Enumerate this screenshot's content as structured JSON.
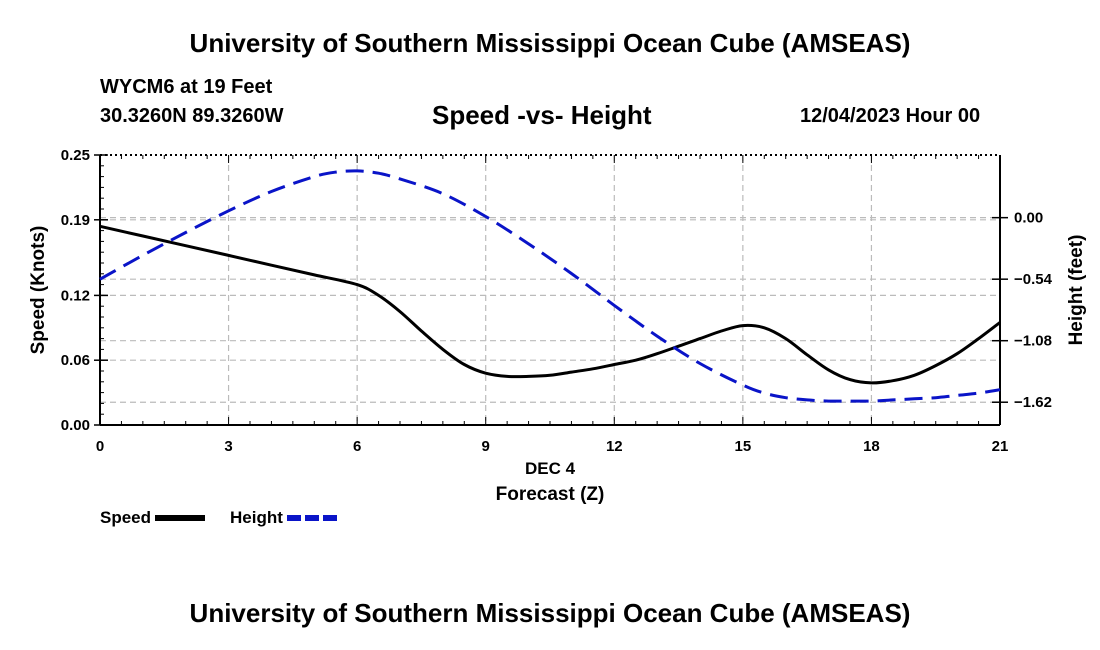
{
  "header": {
    "title_top": "University of Southern Mississippi Ocean Cube (AMSEAS)",
    "station": "WYCM6 at 19 Feet",
    "coords": "30.3260N  89.3260W",
    "subtitle": "Speed -vs- Height",
    "datetime": "12/04/2023 Hour 00",
    "title_bottom": "University of Southern Mississippi Ocean Cube (AMSEAS)"
  },
  "colors": {
    "speed": "#000000",
    "height": "#0a14c8",
    "grid": "#bbbbbb"
  },
  "chart_data": {
    "type": "line",
    "title": "Speed -vs- Height",
    "xlabel": "Forecast (Z)",
    "xlabel_date": "DEC 4",
    "ylabel_left": "Speed (Knots)",
    "ylabel_right": "Height (feet)",
    "xlim": [
      0,
      21
    ],
    "ylim_left": [
      0,
      0.25
    ],
    "ylim_right": [
      -1.82,
      0.55
    ],
    "x_ticks": [
      0,
      3,
      6,
      9,
      12,
      15,
      18,
      21
    ],
    "x_tick_labels": [
      "0",
      "3",
      "6",
      "9",
      "12",
      "15",
      "18",
      "21"
    ],
    "y_left_ticks": [
      0.0,
      0.06,
      0.12,
      0.19,
      0.25
    ],
    "y_left_tick_labels": [
      "0.00",
      "0.06",
      "0.12",
      "0.19",
      "0.25"
    ],
    "y_right_ticks": [
      0.0,
      -0.54,
      -1.08,
      -1.62
    ],
    "y_right_tick_labels": [
      "0.00",
      "−0.54",
      "−1.08",
      "−1.62"
    ],
    "grid": true,
    "legend": {
      "position": "bottom-left",
      "entries": [
        "Speed",
        "Height"
      ]
    },
    "series": [
      {
        "name": "Speed",
        "axis": "left",
        "style": "solid",
        "x": [
          0,
          1,
          2,
          3,
          4,
          5,
          6,
          6.5,
          7,
          7.5,
          8,
          8.5,
          9,
          9.5,
          10,
          10.5,
          11,
          11.5,
          12,
          12.5,
          13,
          13.5,
          14,
          14.5,
          15,
          15.5,
          16,
          16.5,
          17,
          17.5,
          18,
          18.5,
          19,
          19.5,
          20,
          20.5,
          21
        ],
        "values": [
          0.184,
          0.175,
          0.166,
          0.157,
          0.148,
          0.139,
          0.13,
          0.12,
          0.105,
          0.087,
          0.07,
          0.056,
          0.048,
          0.045,
          0.045,
          0.046,
          0.049,
          0.052,
          0.056,
          0.06,
          0.066,
          0.073,
          0.08,
          0.087,
          0.092,
          0.09,
          0.08,
          0.065,
          0.051,
          0.042,
          0.039,
          0.041,
          0.046,
          0.055,
          0.066,
          0.08,
          0.095
        ]
      },
      {
        "name": "Height",
        "axis": "right",
        "style": "dashed",
        "x": [
          0,
          1,
          2,
          3,
          4,
          5,
          5.5,
          6,
          6.5,
          7,
          8,
          9,
          10,
          11,
          12,
          13,
          14,
          15,
          15.5,
          16,
          16.5,
          17,
          17.5,
          18,
          18.5,
          19,
          19.5,
          20,
          20.5,
          21
        ],
        "values": [
          -0.54,
          -0.33,
          -0.13,
          0.06,
          0.23,
          0.36,
          0.4,
          0.41,
          0.39,
          0.34,
          0.21,
          0.01,
          -0.23,
          -0.49,
          -0.77,
          -1.04,
          -1.28,
          -1.47,
          -1.54,
          -1.58,
          -1.6,
          -1.61,
          -1.61,
          -1.61,
          -1.6,
          -1.59,
          -1.58,
          -1.56,
          -1.54,
          -1.51
        ]
      }
    ]
  }
}
